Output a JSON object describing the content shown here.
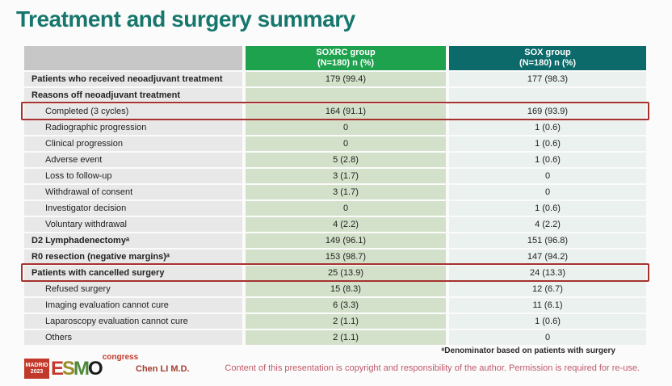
{
  "slide": {
    "title": "Treatment and surgery summary",
    "presenter": "Chen LI M.D.",
    "footnote": "ᵃDenominator based on patients with surgery",
    "copyright_notice": "Content of this presentation is copyright and responsibility of the author. Permission is required for re-use."
  },
  "logo": {
    "venue": "MADRID",
    "year": "2023",
    "letters": [
      "E",
      "S",
      "M",
      "O"
    ],
    "suffix": "congress"
  },
  "table": {
    "header": {
      "soxrc_line1": "SOXRC group",
      "soxrc_line2": "(N=180)  n (%)",
      "sox_line1": "SOX group",
      "sox_line2": "(N=180)  n (%)"
    },
    "rows": [
      {
        "label": "Patients who received neoadjuvant treatment",
        "soxrc": "179 (99.4)",
        "sox": "177 (98.3)",
        "bold": true,
        "indent": false,
        "highlight": false
      },
      {
        "label": "Reasons off neoadjuvant treatment",
        "soxrc": "",
        "sox": "",
        "bold": true,
        "indent": false,
        "highlight": false
      },
      {
        "label": "Completed (3 cycles)",
        "soxrc": "164 (91.1)",
        "sox": "169 (93.9)",
        "bold": false,
        "indent": true,
        "highlight": true
      },
      {
        "label": "Radiographic progression",
        "soxrc": "0",
        "sox": "1 (0.6)",
        "bold": false,
        "indent": true,
        "highlight": false
      },
      {
        "label": "Clinical progression",
        "soxrc": "0",
        "sox": "1 (0.6)",
        "bold": false,
        "indent": true,
        "highlight": false
      },
      {
        "label": "Adverse event",
        "soxrc": "5 (2.8)",
        "sox": "1 (0.6)",
        "bold": false,
        "indent": true,
        "highlight": false
      },
      {
        "label": "Loss to follow-up",
        "soxrc": "3 (1.7)",
        "sox": "0",
        "bold": false,
        "indent": true,
        "highlight": false
      },
      {
        "label": "Withdrawal of consent",
        "soxrc": "3 (1.7)",
        "sox": "0",
        "bold": false,
        "indent": true,
        "highlight": false
      },
      {
        "label": "Investigator decision",
        "soxrc": "0",
        "sox": "1 (0.6)",
        "bold": false,
        "indent": true,
        "highlight": false
      },
      {
        "label": "Voluntary withdrawal",
        "soxrc": "4 (2.2)",
        "sox": "4 (2.2)",
        "bold": false,
        "indent": true,
        "highlight": false
      },
      {
        "label": "D2 Lymphadenectomyᵃ",
        "soxrc": "149 (96.1)",
        "sox": "151 (96.8)",
        "bold": true,
        "indent": false,
        "highlight": false
      },
      {
        "label": "R0 resection (negative margins)ᵃ",
        "soxrc": "153 (98.7)",
        "sox": "147 (94.2)",
        "bold": true,
        "indent": false,
        "highlight": false
      },
      {
        "label": "Patients with cancelled surgery",
        "soxrc": "25 (13.9)",
        "sox": "24 (13.3)",
        "bold": true,
        "indent": false,
        "highlight": true
      },
      {
        "label": "Refused surgery",
        "soxrc": "15 (8.3)",
        "sox": "12 (6.7)",
        "bold": false,
        "indent": true,
        "highlight": false
      },
      {
        "label": "Imaging evaluation cannot cure",
        "soxrc": "6 (3.3)",
        "sox": "11 (6.1)",
        "bold": false,
        "indent": true,
        "highlight": false
      },
      {
        "label": "Laparoscopy evaluation cannot cure",
        "soxrc": "2 (1.1)",
        "sox": "1 (0.6)",
        "bold": false,
        "indent": true,
        "highlight": false
      },
      {
        "label": "Others",
        "soxrc": "2 (1.1)",
        "sox": "0",
        "bold": false,
        "indent": true,
        "highlight": false
      }
    ]
  },
  "colors": {
    "title": "#17776D",
    "header_soxrc_bg": "#1FA24E",
    "header_sox_bg": "#0D6A6A",
    "header_label_bg": "#C7C7C7",
    "label_cell_bg": "#E8E8E8",
    "soxrc_cell_bg": "#D4E1CA",
    "sox_cell_bg": "#EAF1EE",
    "highlight_box": "#A63230",
    "copyright_text": "#C05A6A",
    "presenter_text": "#A33B2E"
  }
}
